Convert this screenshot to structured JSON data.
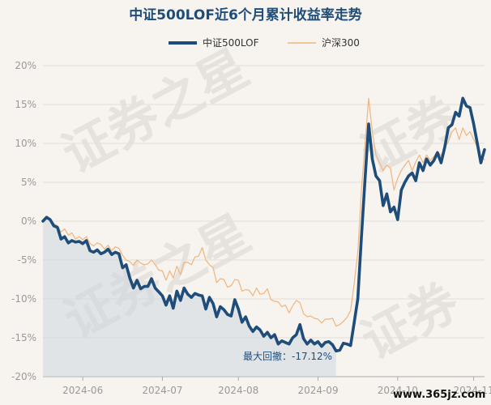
{
  "chart_data": {
    "type": "line",
    "title": "中证500LOF近6个月累计收益率走势",
    "ylim": [
      -20,
      20
    ],
    "yticks": [
      "20%",
      "15%",
      "10%",
      "5%",
      "0%",
      "-5%",
      "-10%",
      "-15%",
      "-20%"
    ],
    "ytick_values": [
      20,
      15,
      10,
      5,
      0,
      -5,
      -10,
      -15,
      -20
    ],
    "xticks": [
      "2024-06",
      "2024-07",
      "2024-08",
      "2024-09",
      "2024-10",
      "2024-11"
    ],
    "x_range": [
      0,
      122
    ],
    "xtick_positions": [
      11,
      33,
      54,
      76,
      98,
      119
    ],
    "grid": true,
    "legend_position": "top-center",
    "annotation": "最大回撤：-17.12%",
    "colors": {
      "fund": "#1f4d7a",
      "index": "#f0b47e",
      "drawdown_fill": "#cdd7df",
      "grid": "#e2ded8"
    },
    "series": [
      {
        "name": "中证500LOF",
        "values": [
          0.0,
          0.5,
          0.2,
          -0.6,
          -0.8,
          -2.3,
          -2.0,
          -2.8,
          -2.5,
          -2.7,
          -2.6,
          -2.9,
          -2.5,
          -3.8,
          -4.0,
          -3.7,
          -4.2,
          -4.0,
          -3.6,
          -4.3,
          -4.0,
          -4.2,
          -6.0,
          -5.6,
          -7.3,
          -8.6,
          -7.6,
          -8.7,
          -8.4,
          -8.4,
          -7.4,
          -8.6,
          -9.1,
          -9.6,
          -10.8,
          -9.6,
          -11.2,
          -9.0,
          -10.2,
          -8.6,
          -9.4,
          -9.8,
          -9.3,
          -9.5,
          -9.6,
          -11.3,
          -9.8,
          -10.6,
          -12.3,
          -11.0,
          -11.4,
          -12.0,
          -12.2,
          -10.1,
          -11.3,
          -13.0,
          -12.3,
          -13.5,
          -14.2,
          -13.6,
          -14.0,
          -14.8,
          -14.3,
          -15.0,
          -14.6,
          -15.8,
          -15.4,
          -15.6,
          -15.8,
          -15.0,
          -14.6,
          -13.3,
          -15.1,
          -15.8,
          -15.3,
          -15.8,
          -15.5,
          -16.1,
          -15.6,
          -15.5,
          -15.9,
          -16.7,
          -16.6,
          -15.7,
          -15.8,
          -16.0,
          -13.0,
          -10.0,
          -2.0,
          5.5,
          12.5,
          8.0,
          5.8,
          5.2,
          2.0,
          3.5,
          1.2,
          1.8,
          0.2,
          4.0,
          5.0,
          5.8,
          6.2,
          5.2,
          7.5,
          6.5,
          8.0,
          7.2,
          7.8,
          8.8,
          7.5,
          9.5,
          12.0,
          12.4,
          14.0,
          13.5,
          15.8,
          14.8,
          14.6,
          12.5,
          10.0,
          7.5,
          9.2
        ]
      },
      {
        "name": "沪深300",
        "values": [
          0.0,
          0.5,
          0.1,
          -0.3,
          -0.6,
          -1.4,
          -1.0,
          -1.8,
          -1.5,
          -2.3,
          -2.0,
          -2.4,
          -2.0,
          -2.9,
          -3.2,
          -2.8,
          -3.0,
          -3.6,
          -3.1,
          -3.8,
          -3.3,
          -3.5,
          -4.4,
          -5.0,
          -5.2,
          -5.7,
          -5.0,
          -5.4,
          -5.6,
          -5.5,
          -5.0,
          -5.6,
          -6.3,
          -6.4,
          -7.6,
          -6.4,
          -7.3,
          -5.8,
          -6.9,
          -5.3,
          -5.3,
          -5.6,
          -4.6,
          -4.5,
          -3.4,
          -5.0,
          -5.6,
          -6.0,
          -7.9,
          -7.4,
          -7.5,
          -8.5,
          -8.3,
          -7.5,
          -7.6,
          -9.0,
          -8.8,
          -8.9,
          -9.6,
          -8.6,
          -9.4,
          -9.3,
          -8.7,
          -10.1,
          -10.3,
          -10.4,
          -11.0,
          -10.8,
          -11.8,
          -10.9,
          -10.2,
          -10.5,
          -11.9,
          -12.3,
          -12.2,
          -12.5,
          -12.6,
          -13.1,
          -12.6,
          -12.6,
          -12.5,
          -13.5,
          -13.3,
          -12.9,
          -12.4,
          -11.5,
          -8.0,
          -4.0,
          4.0,
          10.0,
          15.8,
          11.5,
          8.5,
          7.5,
          6.5,
          7.2,
          6.8,
          4.0,
          5.5,
          6.5,
          7.2,
          7.8,
          6.5,
          7.6,
          8.5,
          7.5,
          8.5,
          7.8,
          8.3,
          9.0,
          8.4,
          9.5,
          10.2,
          11.5,
          12.0,
          10.5,
          12.0,
          11.0,
          11.5,
          10.5,
          9.5,
          8.3,
          7.9
        ]
      }
    ]
  }
}
